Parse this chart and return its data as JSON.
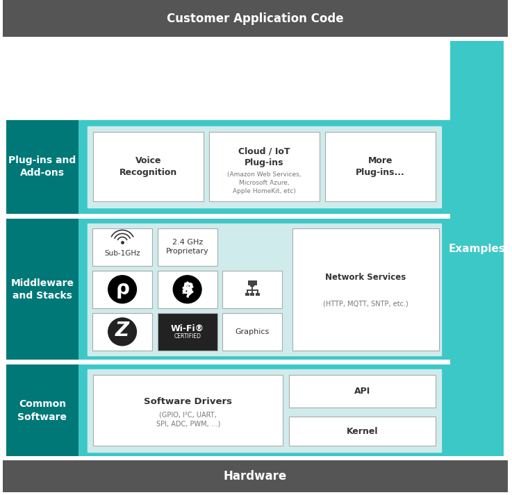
{
  "title_top": "Customer Application Code",
  "title_bottom": "Hardware",
  "col_left_labels": [
    {
      "text": "Plug-ins and\nAdd-ons",
      "row": 2
    },
    {
      "text": "Middleware\nand Stacks",
      "row": 1
    },
    {
      "text": "Common\nSoftware",
      "row": 0
    }
  ],
  "col_right_label": "Examples",
  "colors": {
    "dark_gray": "#555555",
    "dark_teal": "#007878",
    "light_teal": "#3DC8C8",
    "white": "#FFFFFF",
    "light_gray_bg": "#D0EBEB",
    "text_dark": "#333333",
    "text_white": "#FFFFFF",
    "text_gray": "#777777"
  },
  "fig_width": 7.37,
  "fig_height": 7.13
}
